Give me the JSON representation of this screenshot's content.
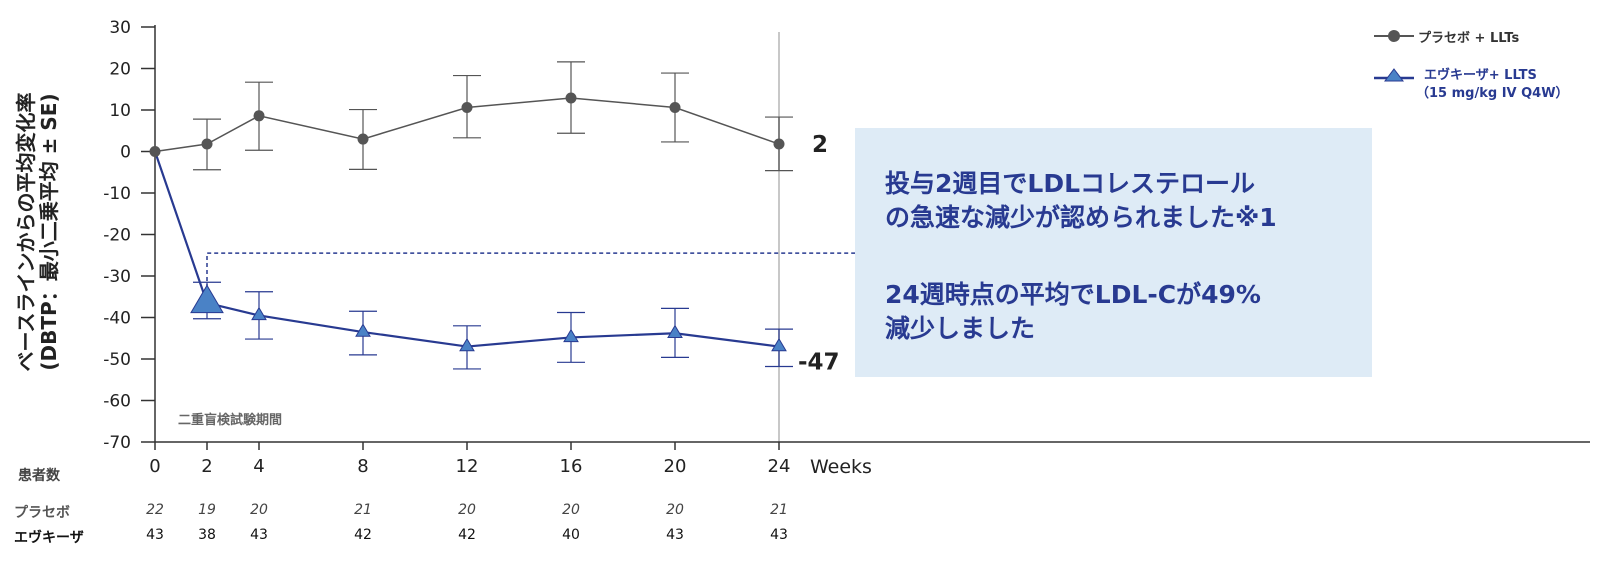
{
  "colors": {
    "placebo": "#555555",
    "evkeeza": "#283a91",
    "evkeeza_marker": "#4a82c6",
    "callout_bg": "#deebf6",
    "callout_text": "#283a91",
    "axis": "#333333",
    "reference_line": "#c8c8c8"
  },
  "chart_data": {
    "type": "line",
    "ylabel_line1": "ベースラインからの平均変化率",
    "ylabel_line2": "(DBTP：最小二乗平均 ± SE)",
    "xlabel": "Weeks",
    "ylim": [
      -70,
      30
    ],
    "yticks": [
      30,
      20,
      10,
      0,
      -10,
      -20,
      -30,
      -40,
      -50,
      -60,
      -70
    ],
    "x": [
      0,
      2,
      4,
      8,
      12,
      16,
      20,
      24
    ],
    "xticks": [
      0,
      2,
      4,
      8,
      12,
      16,
      20,
      24
    ],
    "legend_position": "top-right",
    "period_label": "二重盲検試験期間",
    "reference_week": 24,
    "series": [
      {
        "name": "プラセボ + LLTs",
        "marker": "circle",
        "values": [
          0,
          1.8,
          8.6,
          3.0,
          10.6,
          12.9,
          10.6,
          1.8
        ],
        "se_upper": [
          0,
          7.8,
          16.7,
          10.1,
          18.3,
          21.6,
          18.9,
          8.3
        ],
        "se_lower": [
          0,
          -4.4,
          0.3,
          -4.3,
          3.3,
          4.4,
          2.3,
          -4.6
        ],
        "end_label": "2"
      },
      {
        "name_line1": "エヴキーザ+ LLTS",
        "name_line2": "（15 mg/kg IV Q4W）",
        "marker": "triangle",
        "values": [
          0,
          -36.5,
          -39.5,
          -43.5,
          -47.0,
          -44.8,
          -43.8,
          -47.0
        ],
        "se_upper": [
          0,
          -31.5,
          -33.8,
          -38.5,
          -42.0,
          -38.8,
          -37.8,
          -42.8
        ],
        "se_lower": [
          0,
          -40.3,
          -45.2,
          -49.0,
          -52.4,
          -50.8,
          -49.6,
          -51.8
        ],
        "end_label": "-47"
      }
    ],
    "annotation": {
      "line1": "投与2週目でLDLコレステロール",
      "line2": "の急速な減少が認められました※1",
      "line3": "24週時点の平均でLDL-Cが49%",
      "line4": "減少しました"
    }
  },
  "patient_counts": {
    "title": "患者数",
    "weeks": [
      0,
      2,
      4,
      8,
      12,
      16,
      20,
      24
    ],
    "rows": [
      {
        "label": "プラセボ",
        "values": [
          "22",
          "19",
          "20",
          "21",
          "20",
          "20",
          "20",
          "21"
        ]
      },
      {
        "label": "エヴキーザ",
        "values": [
          "43",
          "38",
          "43",
          "42",
          "42",
          "40",
          "43",
          "43"
        ]
      }
    ]
  }
}
